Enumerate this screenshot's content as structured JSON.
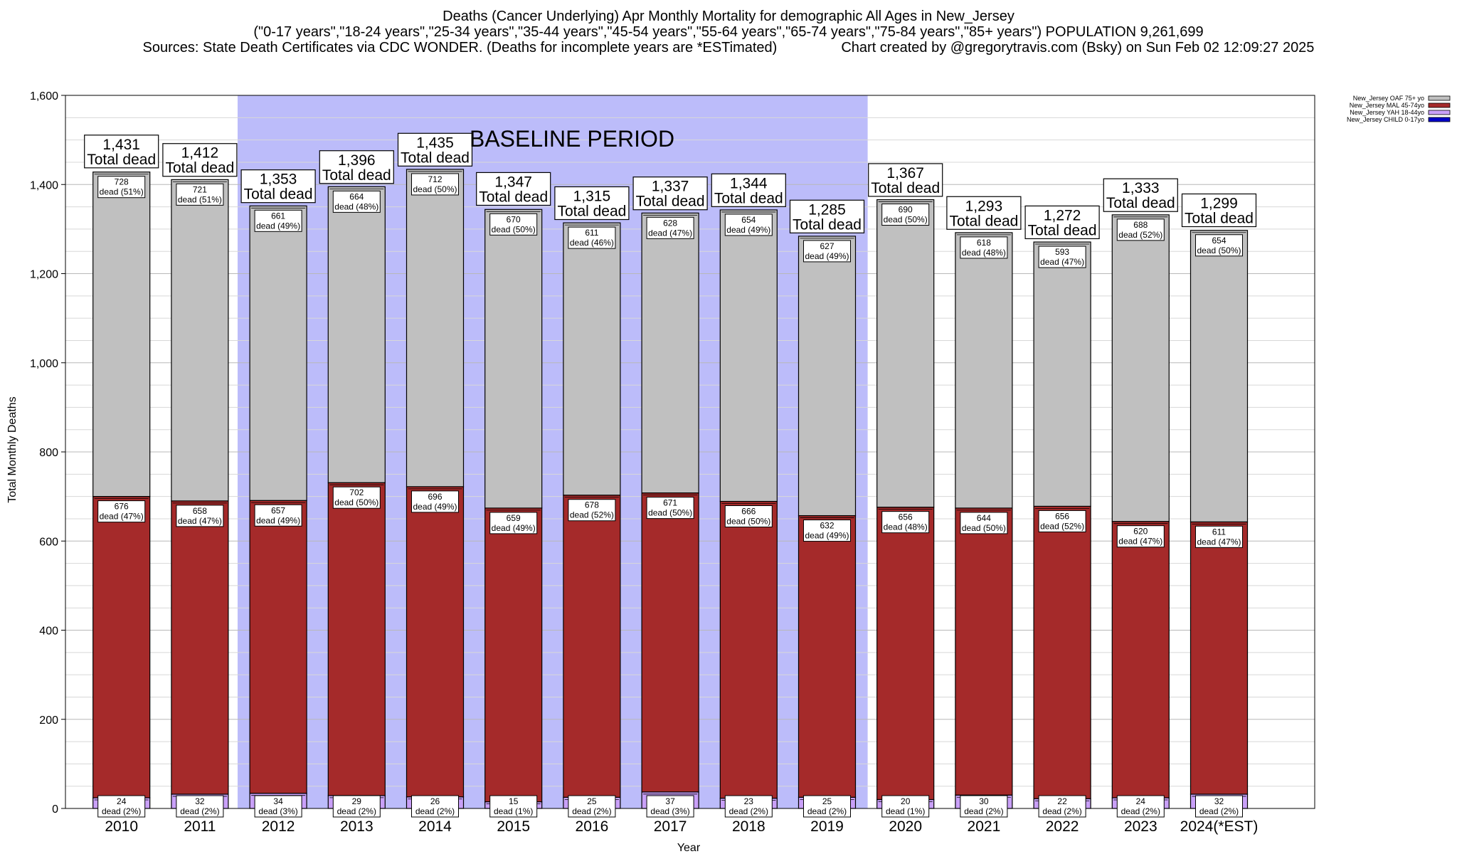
{
  "header": {
    "title": "Deaths (Cancer Underlying) Apr Monthly Mortality for demographic All Ages in New_Jersey",
    "subtitle": "(\"0-17 years\",\"18-24 years\",\"25-34 years\",\"35-44 years\",\"45-54 years\",\"55-64 years\",\"65-74 years\",\"75-84 years\",\"85+ years\") POPULATION 9,261,699",
    "sources": "Sources: State Death Certificates via CDC WONDER. (Deaths for incomplete years are *ESTimated)",
    "credit": "Chart created by @gregorytravis.com (Bsky) on Sun Feb 02 12:09:27 2025"
  },
  "chart_data": {
    "type": "bar",
    "stacked": true,
    "xlabel": "Year",
    "ylabel": "Total Monthly Deaths",
    "ylim": [
      0,
      1600
    ],
    "yticks": [
      0,
      200,
      400,
      600,
      800,
      1000,
      1200,
      1400,
      1600
    ],
    "ytick_labels": [
      "0",
      "200",
      "400",
      "600",
      "800",
      "1,000",
      "1,200",
      "1,400",
      "1,600"
    ],
    "grid": true,
    "legend_position": "top-right",
    "categories": [
      "2010",
      "2011",
      "2012",
      "2013",
      "2014",
      "2015",
      "2016",
      "2017",
      "2018",
      "2019",
      "2020",
      "2021",
      "2022",
      "2023",
      "2024(*EST)"
    ],
    "totals": [
      1431,
      1412,
      1353,
      1396,
      1435,
      1347,
      1315,
      1337,
      1344,
      1285,
      1367,
      1293,
      1272,
      1333,
      1299
    ],
    "total_labels": [
      "1,431",
      "1,412",
      "1,353",
      "1,396",
      "1,435",
      "1,347",
      "1,315",
      "1,337",
      "1,344",
      "1,285",
      "1,367",
      "1,293",
      "1,272",
      "1,333",
      "1,299"
    ],
    "total_caption": "Total dead",
    "baseline": {
      "label": "BASELINE PERIOD",
      "from": "2012",
      "to": "2019",
      "color": "#bcbcfa"
    },
    "series": [
      {
        "name": "New_Jersey CHILD 0-17yo",
        "color": "#0000c8",
        "values": [
          0,
          0,
          0,
          0,
          0,
          0,
          0,
          0,
          0,
          0,
          0,
          0,
          0,
          0,
          0
        ],
        "pcts": []
      },
      {
        "name": "New_Jersey YAH 18-44yo",
        "color": "#c9a0f8",
        "values": [
          24,
          32,
          34,
          29,
          26,
          15,
          25,
          37,
          23,
          25,
          20,
          30,
          22,
          24,
          32
        ],
        "pcts": [
          "(2%)",
          "(2%)",
          "(3%)",
          "(2%)",
          "(2%)",
          "(1%)",
          "(2%)",
          "(3%)",
          "(2%)",
          "(2%)",
          "(1%)",
          "(2%)",
          "(2%)",
          "(2%)",
          "(2%)"
        ]
      },
      {
        "name": "New_Jersey MAL 45-74yo",
        "color": "#a52a2a",
        "values": [
          676,
          658,
          657,
          702,
          696,
          659,
          678,
          671,
          666,
          632,
          656,
          644,
          656,
          620,
          611
        ],
        "pcts": [
          "(47%)",
          "(47%)",
          "(49%)",
          "(50%)",
          "(49%)",
          "(49%)",
          "(52%)",
          "(50%)",
          "(50%)",
          "(49%)",
          "(48%)",
          "(50%)",
          "(52%)",
          "(47%)",
          "(47%)"
        ]
      },
      {
        "name": "New_Jersey OAF 75+ yo",
        "color": "#c0c0c0",
        "values": [
          728,
          721,
          661,
          664,
          712,
          670,
          611,
          628,
          654,
          627,
          690,
          618,
          593,
          688,
          654
        ],
        "pcts": [
          "(51%)",
          "(51%)",
          "(49%)",
          "(48%)",
          "(50%)",
          "(50%)",
          "(46%)",
          "(47%)",
          "(49%)",
          "(49%)",
          "(50%)",
          "(48%)",
          "(47%)",
          "(52%)",
          "(50%)"
        ]
      }
    ],
    "segment_caption": "dead"
  }
}
